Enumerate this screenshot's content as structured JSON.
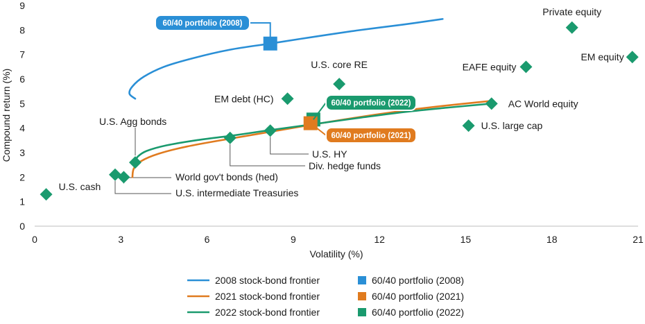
{
  "chart_data": {
    "type": "scatter",
    "xlabel": "Volatility (%)",
    "ylabel": "Compound return (%)",
    "xlim": [
      0,
      21
    ],
    "ylim": [
      0,
      9
    ],
    "xticks": [
      0,
      3,
      6,
      9,
      12,
      15,
      18,
      21
    ],
    "yticks": [
      0,
      1,
      2,
      3,
      4,
      5,
      6,
      7,
      8,
      9
    ],
    "grid": false,
    "legend_position": "bottom",
    "colors": {
      "frontier_2008": "#2a8fd6",
      "frontier_2021": "#e07b1f",
      "frontier_2022": "#1a9a6e",
      "asset": "#1a9a6e",
      "portfolio_2008": "#2a8fd6",
      "portfolio_2021": "#e07b1f",
      "portfolio_2022": "#1a9a6e",
      "leader_line": "#555555"
    },
    "frontiers": [
      {
        "name": "2008 stock-bond frontier",
        "color": "#2a8fd6",
        "points": [
          [
            3.5,
            5.2
          ],
          [
            3.3,
            5.4
          ],
          [
            3.4,
            5.7
          ],
          [
            3.8,
            6.1
          ],
          [
            4.5,
            6.5
          ],
          [
            5.5,
            6.85
          ],
          [
            6.8,
            7.2
          ],
          [
            8.2,
            7.45
          ],
          [
            9.7,
            7.72
          ],
          [
            11.2,
            7.98
          ],
          [
            12.8,
            8.22
          ],
          [
            14.2,
            8.45
          ]
        ]
      },
      {
        "name": "2021 stock-bond frontier",
        "color": "#e07b1f",
        "points": [
          [
            3.4,
            2.0
          ],
          [
            3.45,
            2.35
          ],
          [
            3.7,
            2.65
          ],
          [
            4.3,
            2.95
          ],
          [
            5.3,
            3.25
          ],
          [
            6.7,
            3.55
          ],
          [
            8.2,
            3.85
          ],
          [
            9.7,
            4.15
          ],
          [
            11.3,
            4.45
          ],
          [
            12.9,
            4.72
          ],
          [
            14.4,
            4.93
          ],
          [
            15.8,
            5.1
          ]
        ]
      },
      {
        "name": "2022 stock-bond frontier",
        "color": "#1a9a6e",
        "points": [
          [
            3.5,
            2.65
          ],
          [
            3.6,
            2.85
          ],
          [
            3.9,
            3.07
          ],
          [
            4.6,
            3.3
          ],
          [
            5.6,
            3.5
          ],
          [
            6.9,
            3.7
          ],
          [
            8.2,
            3.92
          ],
          [
            9.7,
            4.16
          ],
          [
            11.3,
            4.42
          ],
          [
            12.9,
            4.66
          ],
          [
            14.4,
            4.84
          ],
          [
            15.9,
            5.0
          ]
        ]
      }
    ],
    "assets": [
      {
        "name": "U.S. cash",
        "x": 0.4,
        "y": 1.3
      },
      {
        "name": "U.S. intermediate Treasuries",
        "x": 2.8,
        "y": 2.1
      },
      {
        "name": "World gov't bonds (hed)",
        "x": 3.1,
        "y": 2.0
      },
      {
        "name": "U.S. Agg bonds",
        "x": 3.5,
        "y": 2.6
      },
      {
        "name": "Div. hedge funds",
        "x": 6.8,
        "y": 3.6
      },
      {
        "name": "U.S. HY",
        "x": 8.2,
        "y": 3.9
      },
      {
        "name": "EM debt (HC)",
        "x": 8.8,
        "y": 5.2
      },
      {
        "name": "U.S. core RE",
        "x": 10.6,
        "y": 5.8
      },
      {
        "name": "U.S. large cap",
        "x": 15.1,
        "y": 4.1
      },
      {
        "name": "AC World equity",
        "x": 15.9,
        "y": 5.0
      },
      {
        "name": "EAFE equity",
        "x": 17.1,
        "y": 6.5
      },
      {
        "name": "Private equity",
        "x": 18.7,
        "y": 8.1
      },
      {
        "name": "EM equity",
        "x": 20.8,
        "y": 6.9
      }
    ],
    "portfolios": [
      {
        "name": "60/40 portfolio (2008)",
        "x": 8.2,
        "y": 7.45,
        "color": "#2a8fd6"
      },
      {
        "name": "60/40 portfolio (2022)",
        "x": 9.7,
        "y": 4.35,
        "color": "#1a9a6e"
      },
      {
        "name": "60/40 portfolio (2021)",
        "x": 9.6,
        "y": 4.2,
        "color": "#e07b1f"
      }
    ]
  },
  "legend": {
    "items": [
      {
        "label": "2008 stock-bond frontier",
        "kind": "line",
        "color": "#2a8fd6"
      },
      {
        "label": "60/40 portfolio (2008)",
        "kind": "square",
        "color": "#2a8fd6"
      },
      {
        "label": "2021 stock-bond frontier",
        "kind": "line",
        "color": "#e07b1f"
      },
      {
        "label": "60/40 portfolio (2021)",
        "kind": "square",
        "color": "#e07b1f"
      },
      {
        "label": "2022 stock-bond frontier",
        "kind": "line",
        "color": "#1a9a6e"
      },
      {
        "label": "60/40 portfolio (2022)",
        "kind": "square",
        "color": "#1a9a6e"
      }
    ]
  }
}
